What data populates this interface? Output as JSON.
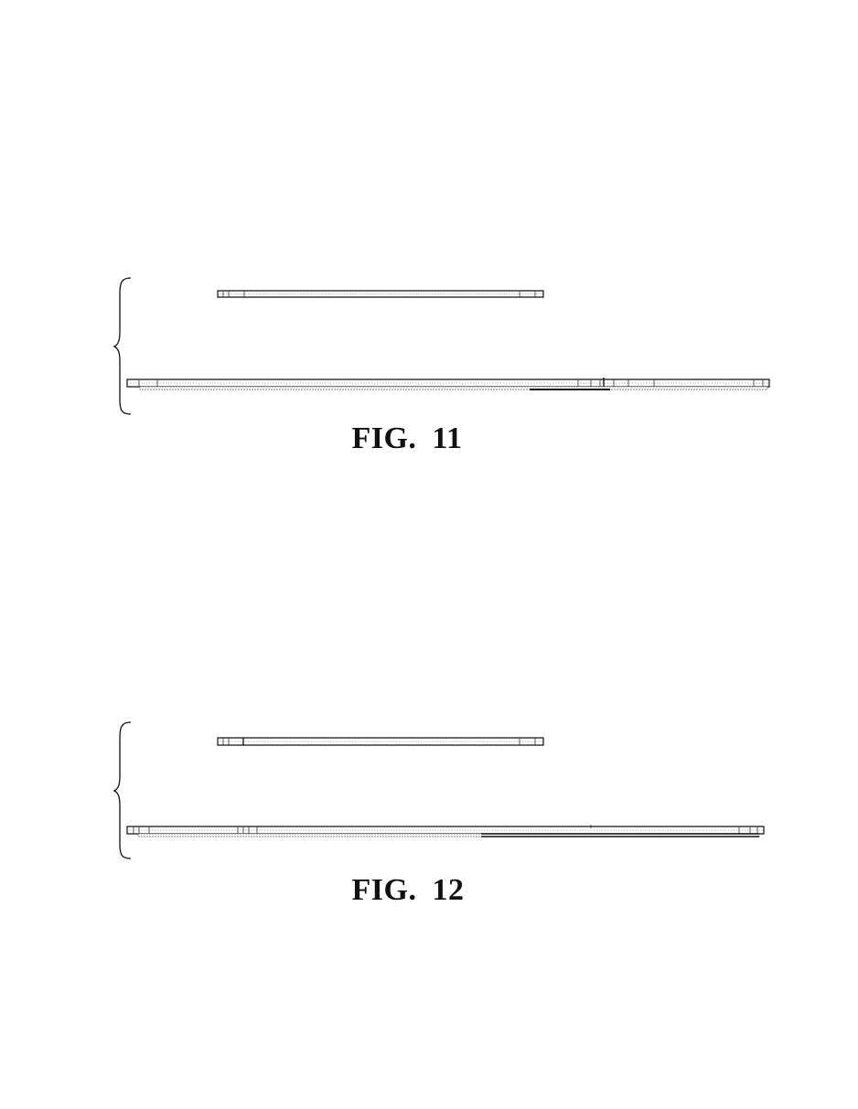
{
  "figures": [
    {
      "id": "fig11",
      "caption": "FIG. 11"
    },
    {
      "id": "fig12",
      "caption": "FIG. 12"
    }
  ],
  "colors": {
    "ink": "#111111",
    "hatch": "#555555",
    "background": "#ffffff"
  }
}
